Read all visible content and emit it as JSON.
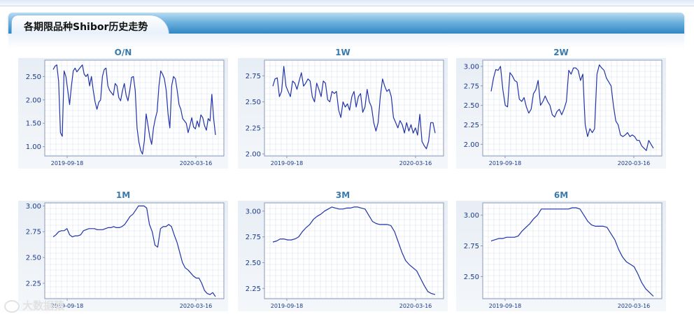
{
  "page": {
    "title": "各期限品种Shibor历史走势",
    "watermark": "大数据猿"
  },
  "colors": {
    "line": "#2233aa",
    "axis_text": "#1a3a8a",
    "plot_border": "#8a9ab8",
    "grid": "#dbe6f2"
  },
  "chart_data": [
    {
      "type": "line",
      "title": "O/N",
      "x_tick_labels": [
        "2019-09-18",
        "2020-03-16"
      ],
      "yticks": [
        "2.50",
        "2.00",
        "1.50",
        "1.00"
      ],
      "ytick_values": [
        2.5,
        2.0,
        1.5,
        1.0
      ],
      "ylim": [
        0.8,
        2.85
      ],
      "values": [
        2.65,
        2.72,
        2.75,
        2.4,
        1.3,
        1.22,
        2.62,
        2.5,
        2.2,
        1.9,
        2.3,
        2.62,
        2.68,
        2.6,
        2.65,
        2.7,
        2.75,
        2.55,
        2.5,
        2.55,
        2.3,
        2.5,
        2.2,
        1.95,
        1.8,
        1.95,
        2.0,
        2.5,
        2.65,
        2.68,
        2.3,
        2.2,
        2.15,
        2.1,
        2.35,
        2.3,
        2.05,
        1.98,
        2.2,
        2.35,
        2.1,
        1.98,
        2.2,
        2.48,
        2.5,
        2.2,
        1.4,
        1.1,
        0.92,
        0.84,
        1.12,
        1.7,
        1.45,
        1.2,
        1.05,
        1.4,
        1.6,
        1.75,
        2.3,
        2.62,
        2.55,
        2.45,
        2.2,
        1.7,
        1.4,
        2.3,
        2.5,
        2.45,
        2.2,
        1.9,
        1.8,
        1.6,
        1.55,
        1.5,
        1.3,
        1.45,
        1.62,
        1.42,
        1.38,
        1.55,
        1.42,
        1.68,
        1.62,
        1.45,
        1.35,
        1.6,
        1.55,
        2.12,
        1.6,
        1.25
      ],
      "grid": true,
      "legend": "none"
    },
    {
      "type": "line",
      "title": "1W",
      "x_tick_labels": [
        "2019-09-18",
        "2020-03-16"
      ],
      "yticks": [
        "2.75",
        "2.50",
        "2.25",
        "2.00"
      ],
      "ytick_values": [
        2.75,
        2.5,
        2.25,
        2.0
      ],
      "ylim": [
        1.98,
        2.9
      ],
      "values": [
        2.65,
        2.72,
        2.73,
        2.55,
        2.6,
        2.84,
        2.65,
        2.6,
        2.55,
        2.7,
        2.68,
        2.62,
        2.7,
        2.78,
        2.65,
        2.68,
        2.72,
        2.7,
        2.55,
        2.5,
        2.68,
        2.62,
        2.55,
        2.7,
        2.68,
        2.52,
        2.5,
        2.6,
        2.58,
        2.6,
        2.42,
        2.35,
        2.5,
        2.45,
        2.48,
        2.42,
        2.55,
        2.6,
        2.45,
        2.55,
        2.58,
        2.4,
        2.45,
        2.62,
        2.5,
        2.45,
        2.3,
        2.22,
        2.3,
        2.55,
        2.72,
        2.65,
        2.6,
        2.62,
        2.55,
        2.35,
        2.3,
        2.25,
        2.32,
        2.28,
        2.2,
        2.3,
        2.22,
        2.28,
        2.2,
        2.25,
        2.18,
        2.38,
        2.12,
        2.08,
        2.05,
        2.12,
        2.3,
        2.3,
        2.2
      ],
      "grid": true,
      "legend": "none"
    },
    {
      "type": "line",
      "title": "2W",
      "x_tick_labels": [
        "2019-09-18",
        "2020-03-16"
      ],
      "yticks": [
        "3.00",
        "2.75",
        "2.50",
        "2.25",
        "2.00"
      ],
      "ytick_values": [
        3.0,
        2.75,
        2.5,
        2.25,
        2.0
      ],
      "ylim": [
        1.85,
        3.08
      ],
      "values": [
        2.68,
        2.85,
        2.96,
        2.95,
        3.0,
        2.7,
        2.5,
        2.48,
        2.92,
        2.88,
        2.82,
        2.8,
        2.58,
        2.55,
        2.6,
        2.48,
        2.4,
        2.45,
        2.65,
        2.7,
        2.82,
        2.5,
        2.55,
        2.62,
        2.55,
        2.5,
        2.38,
        2.35,
        2.42,
        2.45,
        2.38,
        2.45,
        2.55,
        2.95,
        2.9,
        2.98,
        2.98,
        2.95,
        2.82,
        2.9,
        2.25,
        2.1,
        2.2,
        2.15,
        2.2,
        2.9,
        3.02,
        2.98,
        2.95,
        2.85,
        2.8,
        2.75,
        2.5,
        2.3,
        2.25,
        2.12,
        2.1,
        2.12,
        2.15,
        2.1,
        2.12,
        2.1,
        2.05,
        2.05,
        1.98,
        1.95,
        1.92,
        2.05,
        2.0,
        1.95
      ],
      "grid": true,
      "legend": "none"
    },
    {
      "type": "line",
      "title": "1M",
      "x_tick_labels": [
        "2019-09-18",
        "2020-03-16"
      ],
      "yticks": [
        "3.00",
        "2.75",
        "2.50",
        "2.25"
      ],
      "ytick_values": [
        3.0,
        2.75,
        2.5,
        2.25
      ],
      "ylim": [
        2.1,
        3.03
      ],
      "values": [
        2.7,
        2.72,
        2.75,
        2.76,
        2.76,
        2.78,
        2.72,
        2.7,
        2.71,
        2.71,
        2.72,
        2.76,
        2.77,
        2.78,
        2.78,
        2.78,
        2.77,
        2.77,
        2.77,
        2.78,
        2.79,
        2.79,
        2.8,
        2.79,
        2.79,
        2.8,
        2.82,
        2.86,
        2.9,
        2.92,
        2.96,
        3.0,
        3.0,
        3.0,
        2.98,
        2.82,
        2.75,
        2.62,
        2.6,
        2.78,
        2.8,
        2.8,
        2.82,
        2.8,
        2.72,
        2.65,
        2.55,
        2.45,
        2.4,
        2.38,
        2.35,
        2.32,
        2.3,
        2.3,
        2.25,
        2.18,
        2.15,
        2.14,
        2.16,
        2.12
      ],
      "grid": true,
      "legend": "none"
    },
    {
      "type": "line",
      "title": "3M",
      "x_tick_labels": [
        "2019-09-18",
        "2020-03-16"
      ],
      "yticks": [
        "3.00",
        "2.75",
        "2.50",
        "2.25"
      ],
      "ytick_values": [
        3.0,
        2.75,
        2.5,
        2.25
      ],
      "ylim": [
        2.15,
        3.08
      ],
      "values": [
        2.7,
        2.71,
        2.73,
        2.73,
        2.72,
        2.72,
        2.73,
        2.75,
        2.8,
        2.84,
        2.87,
        2.92,
        2.95,
        2.97,
        3.0,
        3.02,
        3.04,
        3.03,
        3.02,
        3.02,
        3.03,
        3.03,
        3.04,
        3.04,
        3.03,
        3.02,
        2.96,
        2.9,
        2.88,
        2.87,
        2.87,
        2.87,
        2.86,
        2.8,
        2.7,
        2.6,
        2.52,
        2.48,
        2.45,
        2.42,
        2.35,
        2.28,
        2.22,
        2.2,
        2.19
      ],
      "grid": true,
      "legend": "none"
    },
    {
      "type": "line",
      "title": "6M",
      "x_tick_labels": [
        "2019-09-18",
        "2020-03-16"
      ],
      "yticks": [
        "3.00",
        "2.75",
        "2.50"
      ],
      "ytick_values": [
        3.0,
        2.75,
        2.5
      ],
      "ylim": [
        2.32,
        3.1
      ],
      "values": [
        2.79,
        2.8,
        2.81,
        2.81,
        2.82,
        2.82,
        2.82,
        2.83,
        2.87,
        2.9,
        2.93,
        2.97,
        3.0,
        3.05,
        3.05,
        3.05,
        3.05,
        3.05,
        3.05,
        3.05,
        3.05,
        3.06,
        3.06,
        3.05,
        3.0,
        2.95,
        2.92,
        2.91,
        2.91,
        2.91,
        2.9,
        2.85,
        2.8,
        2.72,
        2.66,
        2.62,
        2.6,
        2.58,
        2.52,
        2.45,
        2.4,
        2.37,
        2.34
      ],
      "grid": true,
      "legend": "none"
    }
  ]
}
